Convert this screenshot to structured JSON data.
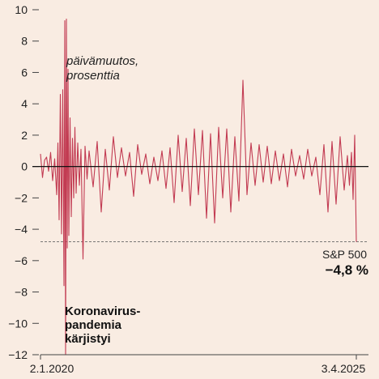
{
  "chart_data": {
    "type": "line",
    "xlabel": "",
    "ylabel": "",
    "ylim": [
      -12,
      10
    ],
    "yticks": [
      10,
      8,
      6,
      4,
      2,
      0,
      -2,
      -4,
      -6,
      -8,
      -10,
      -12
    ],
    "ytick_labels": [
      "10",
      "8",
      "6",
      "4",
      "2",
      "0",
      "−2",
      "−4",
      "−6",
      "−8",
      "−10",
      "−12"
    ],
    "x_start": "2020-01-02",
    "x_end": "2025-04-03",
    "x_tick_labels": [
      "2.1.2020",
      "3.4.2025"
    ],
    "grid": false,
    "line_color": "#c23b52",
    "reference_line": {
      "value": -4.8,
      "style": "dashed"
    },
    "annotations": {
      "series_note_line1": "päivämuutos,",
      "series_note_line2": "prosenttia",
      "pandemic_line1": "Koronavirus-",
      "pandemic_line2": "pandemia",
      "pandemic_line3": "kärjistyi",
      "index_name": "S&P 500",
      "last_change": "−4,8 %"
    },
    "series": [
      {
        "values": [
          [
            0.0,
            0.8
          ],
          [
            0.5,
            -0.7
          ],
          [
            1.0,
            0.4
          ],
          [
            1.5,
            0.6
          ],
          [
            2.0,
            -0.3
          ],
          [
            2.5,
            0.9
          ],
          [
            3.0,
            -0.9
          ],
          [
            3.5,
            0.5
          ],
          [
            4.0,
            -1.8
          ],
          [
            4.3,
            1.5
          ],
          [
            4.6,
            -3.4
          ],
          [
            4.9,
            4.6
          ],
          [
            5.2,
            -4.3
          ],
          [
            5.5,
            4.9
          ],
          [
            5.8,
            -7.6
          ],
          [
            6.0,
            9.3
          ],
          [
            6.2,
            -12.0
          ],
          [
            6.4,
            9.4
          ],
          [
            6.6,
            -5.2
          ],
          [
            6.8,
            6.2
          ],
          [
            7.0,
            -4.4
          ],
          [
            7.3,
            3.1
          ],
          [
            7.6,
            -3.2
          ],
          [
            7.9,
            1.8
          ],
          [
            8.2,
            -2.0
          ],
          [
            8.5,
            2.5
          ],
          [
            8.8,
            -1.7
          ],
          [
            9.2,
            1.5
          ],
          [
            9.6,
            -1.2
          ],
          [
            10.0,
            1.1
          ],
          [
            10.5,
            -5.9
          ],
          [
            11.0,
            1.3
          ],
          [
            11.5,
            -0.8
          ],
          [
            12.0,
            1.0
          ],
          [
            13.0,
            -1.3
          ],
          [
            14.0,
            1.6
          ],
          [
            15.0,
            -2.9
          ],
          [
            16.0,
            1.1
          ],
          [
            17.0,
            -1.5
          ],
          [
            18.0,
            1.9
          ],
          [
            19.0,
            -0.7
          ],
          [
            20.0,
            1.2
          ],
          [
            21.0,
            -0.6
          ],
          [
            22.0,
            0.9
          ],
          [
            23.0,
            -1.9
          ],
          [
            24.0,
            1.4
          ],
          [
            25.0,
            -0.5
          ],
          [
            26.0,
            0.8
          ],
          [
            27.0,
            -1.1
          ],
          [
            28.0,
            0.6
          ],
          [
            29.0,
            -0.9
          ],
          [
            30.0,
            1.0
          ],
          [
            31.0,
            -1.4
          ],
          [
            32.0,
            1.2
          ],
          [
            33.0,
            -2.3
          ],
          [
            34.0,
            2.0
          ],
          [
            35.0,
            -1.6
          ],
          [
            36.0,
            1.8
          ],
          [
            37.0,
            -2.5
          ],
          [
            38.0,
            2.4
          ],
          [
            39.0,
            -1.8
          ],
          [
            40.0,
            2.3
          ],
          [
            41.0,
            -3.3
          ],
          [
            42.0,
            2.1
          ],
          [
            43.0,
            -3.6
          ],
          [
            44.0,
            2.5
          ],
          [
            45.0,
            -2.0
          ],
          [
            46.0,
            2.4
          ],
          [
            47.0,
            -2.9
          ],
          [
            48.0,
            1.9
          ],
          [
            49.0,
            -2.2
          ],
          [
            50.0,
            5.5
          ],
          [
            51.0,
            -1.8
          ],
          [
            52.0,
            1.5
          ],
          [
            53.0,
            -1.2
          ],
          [
            54.0,
            1.4
          ],
          [
            55.0,
            -1.0
          ],
          [
            56.0,
            1.3
          ],
          [
            57.0,
            -1.1
          ],
          [
            58.0,
            1.0
          ],
          [
            59.0,
            -0.9
          ],
          [
            60.0,
            0.8
          ],
          [
            61.0,
            -1.3
          ],
          [
            62.0,
            1.1
          ],
          [
            63.0,
            -0.6
          ],
          [
            64.0,
            0.7
          ],
          [
            65.0,
            -0.8
          ],
          [
            66.0,
            1.1
          ],
          [
            67.0,
            -0.6
          ],
          [
            68.0,
            0.6
          ],
          [
            69.0,
            -1.8
          ],
          [
            70.0,
            1.4
          ],
          [
            71.0,
            -2.9
          ],
          [
            72.0,
            1.6
          ],
          [
            73.0,
            -2.4
          ],
          [
            74.0,
            1.9
          ],
          [
            75.0,
            -1.5
          ],
          [
            75.8,
            0.7
          ],
          [
            76.3,
            -1.2
          ],
          [
            76.8,
            0.9
          ],
          [
            77.2,
            -2.1
          ],
          [
            77.6,
            2.0
          ],
          [
            78.0,
            -4.8
          ]
        ]
      }
    ]
  }
}
